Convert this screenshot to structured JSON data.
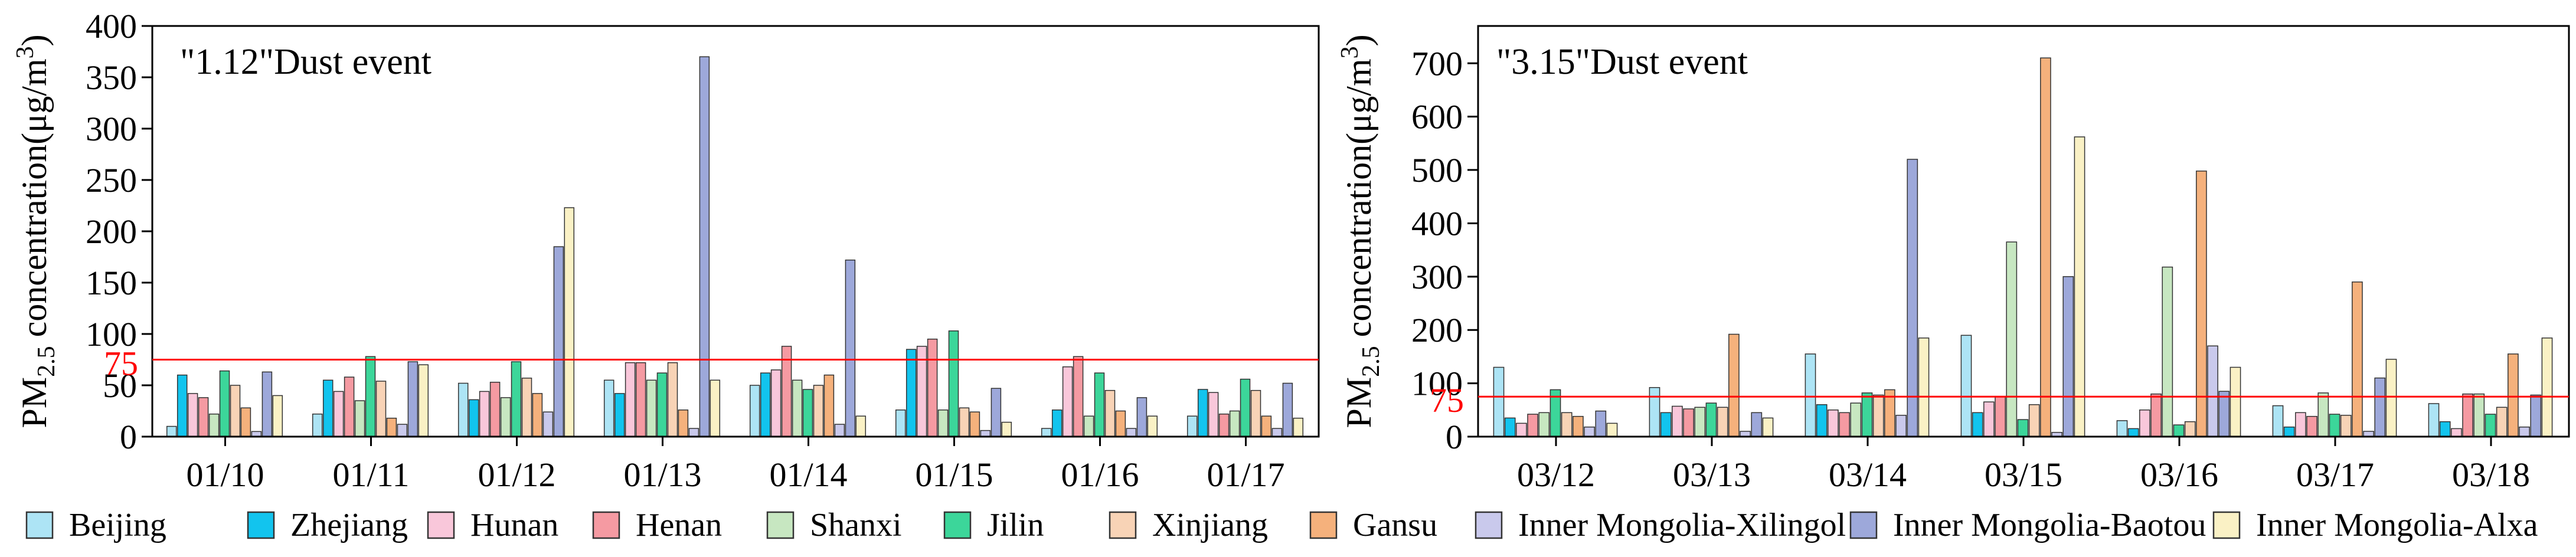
{
  "series_names": [
    "Beijing",
    "Zhejiang",
    "Hunan",
    "Henan",
    "Shanxi",
    "Jilin",
    "Xinjiang",
    "Gansu",
    "Inner Mongolia-Xilingol",
    "Inner Mongolia-Baotou",
    "Inner Mongolia-Alxa"
  ],
  "series_colors": [
    "#ADE4F5",
    "#12C4EE",
    "#F9C7DA",
    "#F59AA2",
    "#C7E7C1",
    "#3CD69A",
    "#F8D3B6",
    "#F5B17C",
    "#C9C9EC",
    "#9DA8DA",
    "#FAF1C5"
  ],
  "threshold_color": "#FF0000",
  "chart_data": [
    {
      "type": "bar",
      "title": "\"1.12\"Dust event",
      "ylabel_main": "PM",
      "ylabel_sub": "2.5",
      "ylabel_rest": " concentration(μg/m",
      "ylabel_sup": "3",
      "ylabel_close": ")",
      "threshold": 75,
      "threshold_label": "75",
      "ylim": [
        0,
        400
      ],
      "yticks": [
        0,
        50,
        100,
        150,
        200,
        250,
        300,
        350,
        400
      ],
      "categories": [
        "01/10",
        "01/11",
        "01/12",
        "01/13",
        "01/14",
        "01/15",
        "01/16",
        "01/17"
      ],
      "series": [
        {
          "name": "Beijing",
          "values": [
            10,
            22,
            52,
            55,
            50,
            26,
            8,
            20
          ]
        },
        {
          "name": "Zhejiang",
          "values": [
            60,
            55,
            36,
            42,
            62,
            85,
            26,
            46
          ]
        },
        {
          "name": "Hunan",
          "values": [
            42,
            44,
            44,
            72,
            65,
            88,
            68,
            43
          ]
        },
        {
          "name": "Henan",
          "values": [
            38,
            58,
            53,
            72,
            88,
            95,
            78,
            22
          ]
        },
        {
          "name": "Shanxi",
          "values": [
            22,
            35,
            38,
            55,
            55,
            26,
            20,
            25
          ]
        },
        {
          "name": "Jilin",
          "values": [
            64,
            78,
            73,
            62,
            46,
            103,
            62,
            56
          ]
        },
        {
          "name": "Xinjiang",
          "values": [
            50,
            54,
            57,
            72,
            50,
            28,
            45,
            45
          ]
        },
        {
          "name": "Gansu",
          "values": [
            28,
            18,
            42,
            26,
            60,
            24,
            25,
            20
          ]
        },
        {
          "name": "Inner Mongolia-Xilingol",
          "values": [
            5,
            12,
            24,
            8,
            12,
            6,
            8,
            8
          ]
        },
        {
          "name": "Inner Mongolia-Baotou",
          "values": [
            63,
            73,
            185,
            370,
            172,
            47,
            38,
            52
          ]
        },
        {
          "name": "Inner Mongolia-Alxa",
          "values": [
            40,
            70,
            223,
            55,
            20,
            14,
            20,
            18
          ]
        }
      ]
    },
    {
      "type": "bar",
      "title": "\"3.15\"Dust event",
      "ylabel_main": "PM",
      "ylabel_sub": "2.5",
      "ylabel_rest": " concentration(μg/m",
      "ylabel_sup": "3",
      "ylabel_close": ")",
      "threshold": 75,
      "threshold_label": "75",
      "ylim": [
        0,
        770
      ],
      "yticks": [
        0,
        100,
        200,
        300,
        400,
        500,
        600,
        700
      ],
      "categories": [
        "03/12",
        "03/13",
        "03/14",
        "03/15",
        "03/16",
        "03/17",
        "03/18"
      ],
      "series": [
        {
          "name": "Beijing",
          "values": [
            130,
            92,
            155,
            190,
            30,
            58,
            62
          ]
        },
        {
          "name": "Zhejiang",
          "values": [
            35,
            45,
            60,
            45,
            15,
            18,
            28
          ]
        },
        {
          "name": "Hunan",
          "values": [
            25,
            57,
            50,
            65,
            50,
            45,
            15
          ]
        },
        {
          "name": "Henan",
          "values": [
            42,
            52,
            45,
            75,
            80,
            38,
            80
          ]
        },
        {
          "name": "Shanxi",
          "values": [
            45,
            55,
            63,
            365,
            318,
            82,
            80
          ]
        },
        {
          "name": "Jilin",
          "values": [
            88,
            63,
            82,
            32,
            22,
            42,
            42
          ]
        },
        {
          "name": "Xinjiang",
          "values": [
            45,
            55,
            78,
            60,
            28,
            40,
            55
          ]
        },
        {
          "name": "Gansu",
          "values": [
            38,
            192,
            88,
            710,
            498,
            290,
            155
          ]
        },
        {
          "name": "Inner Mongolia-Xilingol",
          "values": [
            18,
            10,
            40,
            8,
            170,
            10,
            18
          ]
        },
        {
          "name": "Inner Mongolia-Baotou",
          "values": [
            48,
            45,
            520,
            300,
            85,
            110,
            78
          ]
        },
        {
          "name": "Inner Mongolia-Alxa",
          "values": [
            25,
            35,
            185,
            562,
            130,
            145,
            185
          ]
        }
      ]
    }
  ]
}
